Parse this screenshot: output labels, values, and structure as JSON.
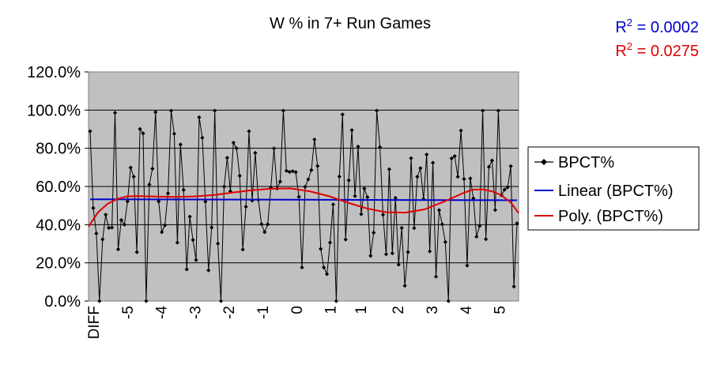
{
  "chart_data": {
    "type": "line",
    "title": "W % in 7+ Run Games",
    "r2_annotations": [
      {
        "label": "R",
        "sup": "2",
        "value": " = 0.0002",
        "color": "#0000cc"
      },
      {
        "label": "R",
        "sup": "2",
        "value": " = 0.0275",
        "color": "#e00000"
      }
    ],
    "ylim": [
      0,
      120
    ],
    "yticks": [
      {
        "value": 0,
        "label": "0.0%"
      },
      {
        "value": 20,
        "label": "20.0%"
      },
      {
        "value": 40,
        "label": "40.0%"
      },
      {
        "value": 60,
        "label": "60.0%"
      },
      {
        "value": 80,
        "label": "80.0%"
      },
      {
        "value": 100,
        "label": "100.0%"
      },
      {
        "value": 120,
        "label": "120.0%"
      }
    ],
    "xlim": [
      -5.75,
      5.45
    ],
    "xticks": [
      {
        "value": -6.0,
        "label": "DIFF"
      },
      {
        "value": -5,
        "label": "-5"
      },
      {
        "value": -4,
        "label": "-4"
      },
      {
        "value": -3,
        "label": "-3"
      },
      {
        "value": -2,
        "label": "-2"
      },
      {
        "value": -1,
        "label": "-1"
      },
      {
        "value": 0,
        "label": "0"
      },
      {
        "value": 1,
        "label": "1"
      },
      {
        "value": 1.9,
        "label": "1"
      },
      {
        "value": 3.0,
        "label": "2"
      },
      {
        "value": 4.0,
        "label": "3"
      },
      {
        "value": 5.0,
        "label": "4"
      },
      {
        "value": 6.0,
        "label": "5"
      }
    ],
    "grid": true,
    "legend_position": "right",
    "colors": {
      "plot_bg": "#c0c0c0",
      "series": "#000000",
      "linear": "#0000cc",
      "poly": "#e00000"
    },
    "series": [
      {
        "name": "BPCT%",
        "values": [
          88.9,
          48.7,
          35.4,
          0.0,
          32.3,
          45.2,
          38.3,
          38.5,
          98.6,
          27.1,
          42.4,
          40.0,
          52.2,
          69.9,
          65.1,
          25.6,
          90.1,
          87.8,
          0.0,
          61.0,
          69.3,
          98.9,
          52.2,
          36.1,
          39.7,
          56.4,
          99.7,
          87.6,
          30.6,
          82.0,
          58.2,
          16.6,
          44.2,
          32.0,
          21.5,
          96.2,
          85.5,
          52.1,
          16.1,
          38.5,
          99.7,
          30.1,
          0.0,
          59.9,
          75.0,
          57.5,
          82.9,
          80.0,
          65.6,
          27.0,
          49.4,
          88.9,
          52.6,
          77.6,
          53.0,
          40.3,
          36.1,
          40.2,
          59.4,
          79.9,
          58.9,
          62.6,
          99.7,
          68.2,
          67.6,
          68.0,
          67.5,
          54.6,
          17.6,
          59.8,
          63.7,
          68.6,
          84.6,
          70.7,
          27.3,
          17.6,
          14.1,
          30.6,
          50.6,
          0.0,
          65.2,
          97.7,
          32.2,
          63.2,
          89.5,
          55.0,
          80.9,
          45.5,
          58.9,
          54.4,
          23.7,
          35.8,
          99.7,
          80.6,
          45.2,
          24.5,
          69.0,
          25.0,
          54.0,
          19.1,
          38.3,
          8.0,
          25.6,
          74.8,
          38.2,
          65.1,
          69.6,
          53.4,
          76.7,
          26.0,
          72.4,
          12.8,
          47.6,
          40.2,
          30.9,
          0.0,
          74.7,
          75.9,
          65.1,
          89.3,
          63.9,
          18.6,
          64.2,
          53.8,
          33.7,
          39.3,
          99.7,
          32.4,
          70.3,
          73.6,
          47.7,
          99.7,
          55.4,
          58.3,
          59.6,
          70.6,
          7.6,
          40.7
        ]
      },
      {
        "name": "Linear (BPCT%)",
        "values": [
          53.3,
          52.8
        ]
      },
      {
        "name": "Poly. (BPCT%)",
        "x": [
          -5.75,
          -5.5,
          -5.25,
          -5.0,
          -4.75,
          -4.5,
          -4.0,
          -3.5,
          -3.0,
          -2.5,
          -2.0,
          -1.5,
          -1.0,
          -0.5,
          0.0,
          0.5,
          1.0,
          1.5,
          2.0,
          2.5,
          3.0,
          3.5,
          4.0,
          4.25,
          4.5,
          4.75,
          5.0,
          5.25,
          5.45
        ],
        "values": [
          39.0,
          46.5,
          51.0,
          53.5,
          54.8,
          55.0,
          54.7,
          54.5,
          54.8,
          55.5,
          56.8,
          58.0,
          58.8,
          59.0,
          57.5,
          55.0,
          51.5,
          48.5,
          46.5,
          46.3,
          48.0,
          52.0,
          56.5,
          58.3,
          58.5,
          57.5,
          55.5,
          51.5,
          46.0
        ]
      }
    ],
    "legend": [
      {
        "key": "series",
        "label": "BPCT%"
      },
      {
        "key": "linear",
        "label": "Linear (BPCT%)"
      },
      {
        "key": "poly",
        "label": "Poly. (BPCT%)"
      }
    ]
  }
}
